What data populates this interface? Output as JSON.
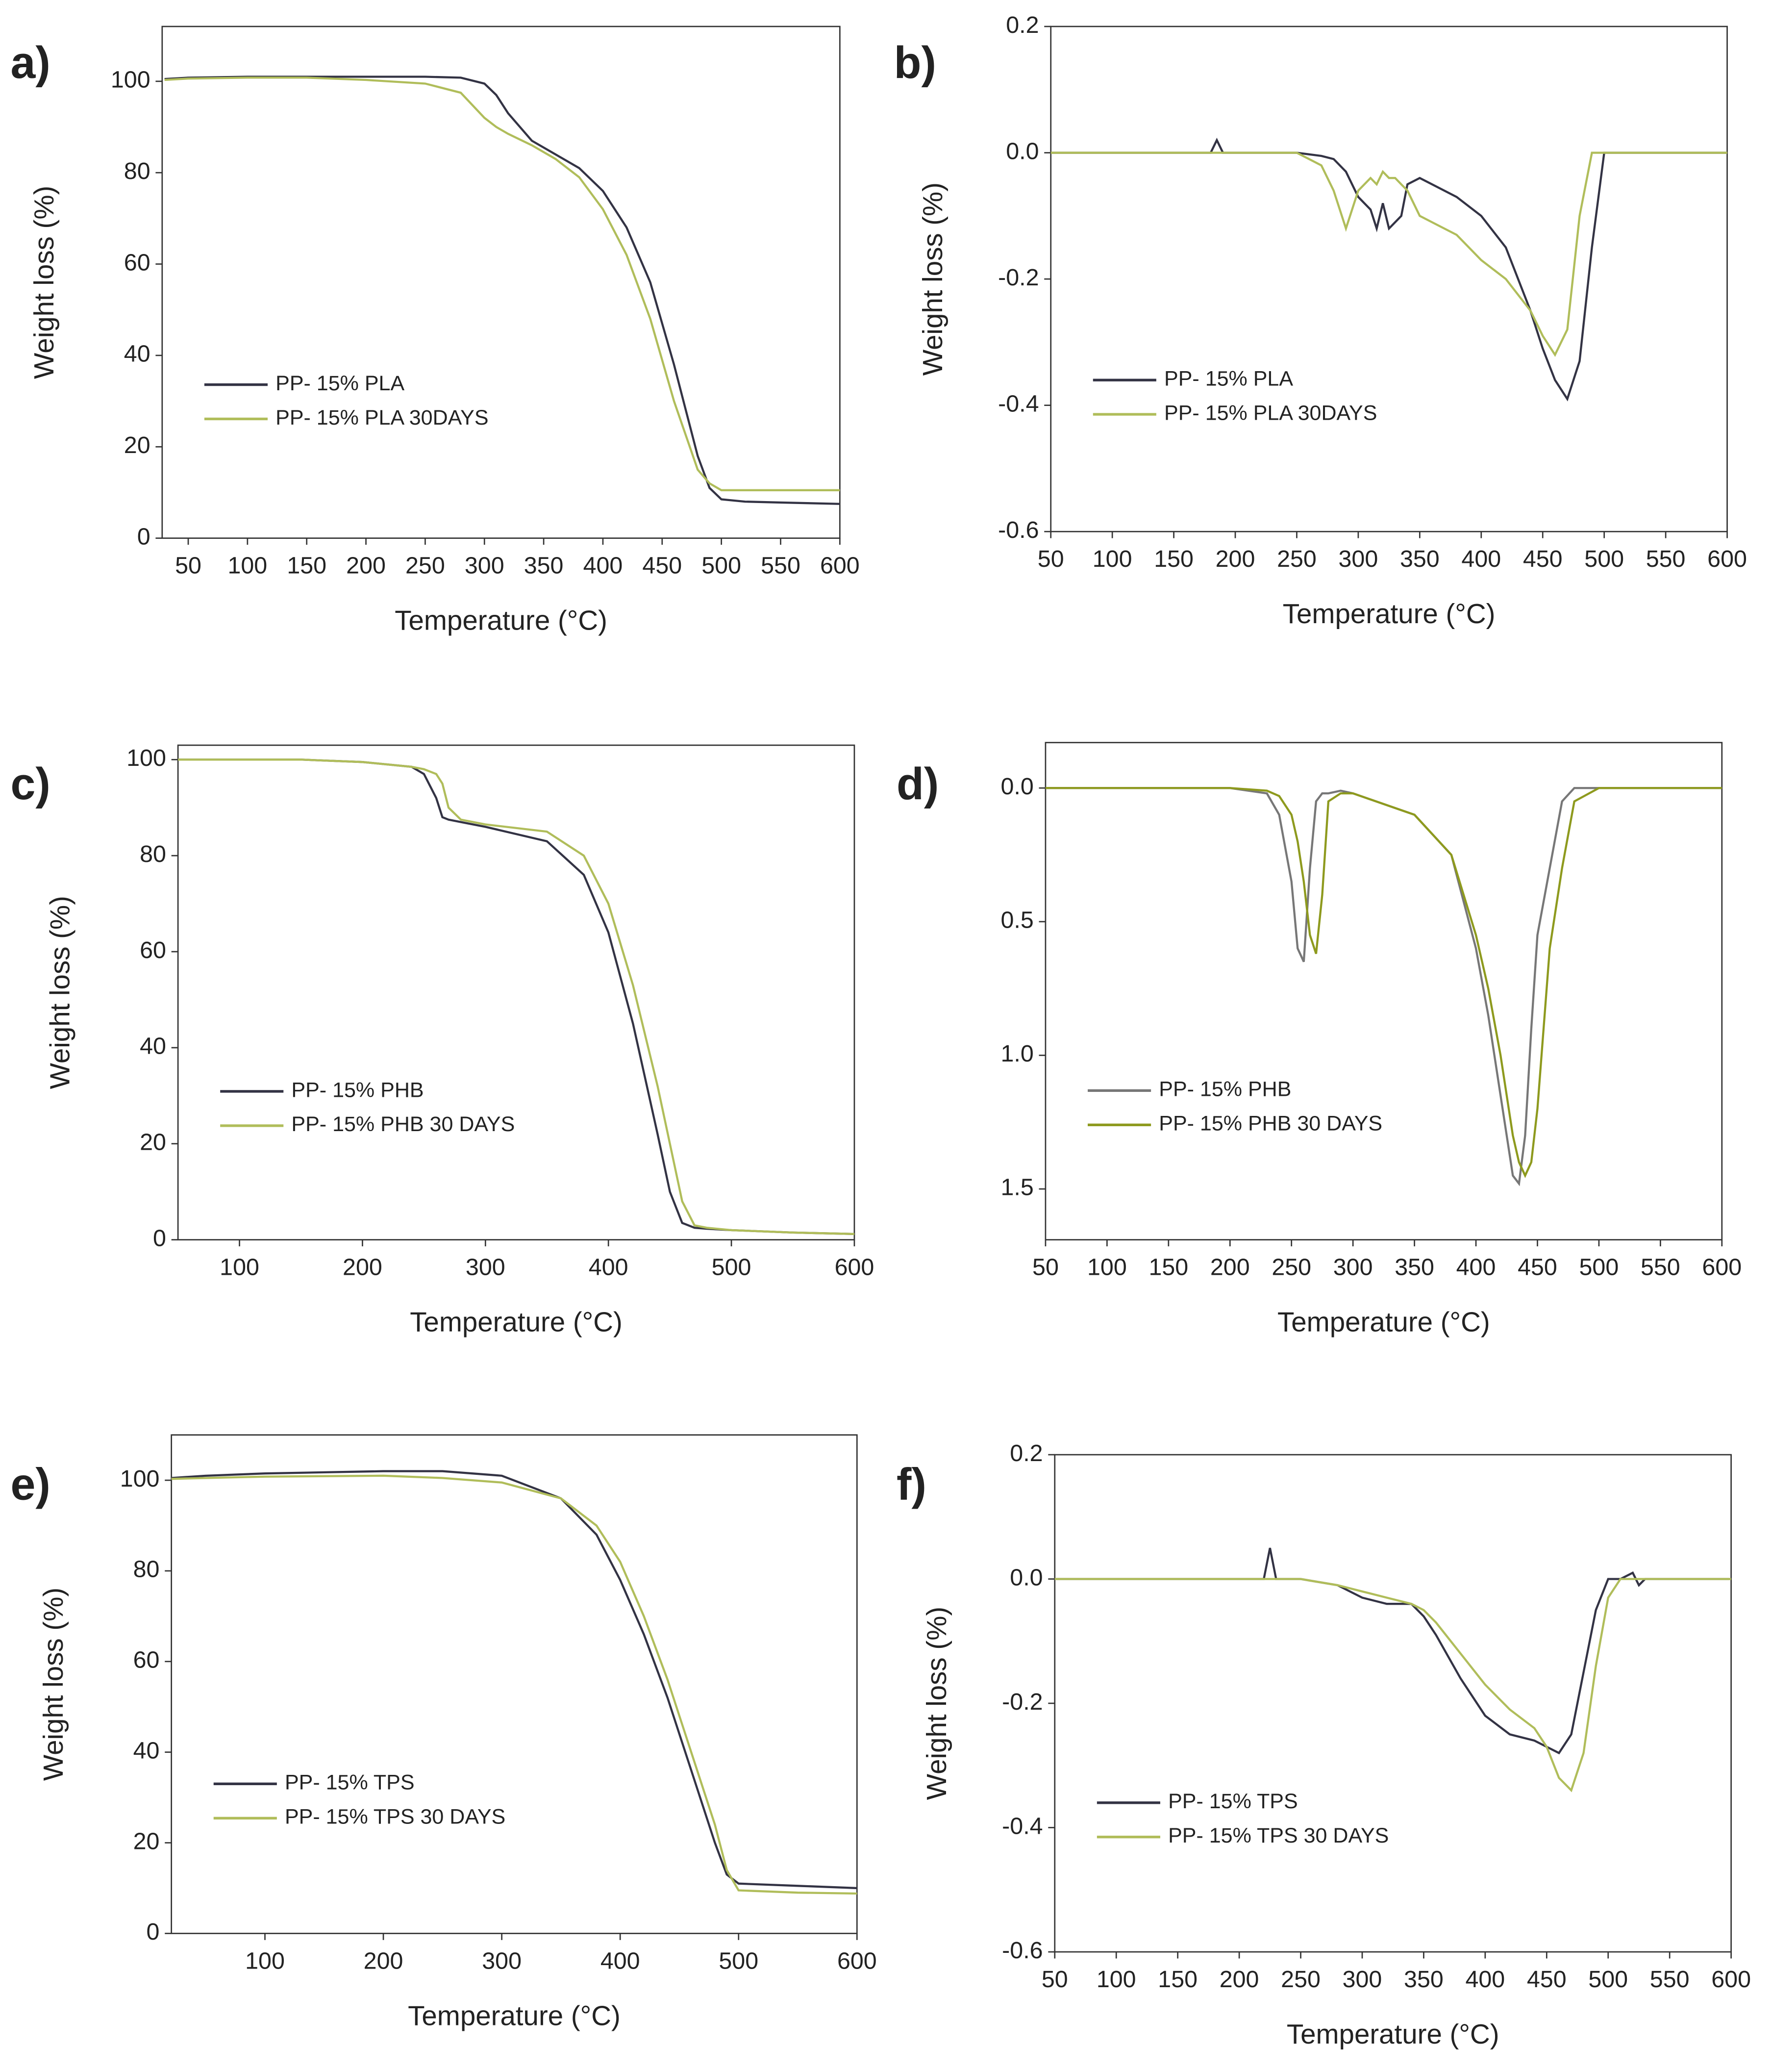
{
  "chart_data": [
    {
      "type": "line",
      "label": "a)",
      "xlabel": "Temperature (°C)",
      "ylabel": "Weight loss (%)",
      "x": [
        30,
        50,
        100,
        150,
        200,
        250,
        280,
        300,
        310,
        320,
        340,
        360,
        380,
        400,
        420,
        440,
        460,
        480,
        490,
        500,
        520,
        550,
        600
      ],
      "series": [
        {
          "name": "PP- 15% PLA",
          "color": "#333344",
          "values": [
            100.5,
            100.8,
            101,
            101,
            101,
            101,
            100.8,
            99.5,
            97,
            93,
            87,
            84,
            81,
            76,
            68,
            56,
            38,
            18,
            11,
            8.5,
            8,
            7.8,
            7.5
          ]
        },
        {
          "name": "PP- 15% PLA 30DAYS",
          "color": "#b0bd5a",
          "values": [
            100.3,
            100.6,
            100.8,
            100.8,
            100.3,
            99.5,
            97.5,
            92,
            90,
            88.5,
            86,
            83,
            79,
            72,
            62,
            48,
            30,
            15,
            12,
            10.5,
            10.5,
            10.5,
            10.5
          ]
        }
      ],
      "xlim": [
        28,
        600
      ],
      "ylim": [
        0,
        112
      ],
      "xticks": [
        50,
        100,
        150,
        200,
        250,
        300,
        350,
        400,
        450,
        500,
        550,
        600
      ],
      "yticks": [
        0,
        20,
        40,
        60,
        80,
        100
      ],
      "legend": "lower left"
    },
    {
      "type": "line",
      "label": "b)",
      "xlabel": "Temperature (°C)",
      "ylabel": "Weight loss (%)",
      "x": [
        50,
        100,
        150,
        180,
        185,
        190,
        200,
        250,
        270,
        280,
        290,
        300,
        310,
        315,
        320,
        325,
        330,
        335,
        340,
        350,
        380,
        400,
        420,
        440,
        450,
        460,
        470,
        480,
        490,
        500,
        550,
        600
      ],
      "series": [
        {
          "name": "PP- 15% PLA",
          "color": "#333344",
          "values": [
            0,
            0,
            0,
            0,
            0.02,
            0,
            0,
            0,
            -0.005,
            -0.01,
            -0.03,
            -0.07,
            -0.09,
            -0.12,
            -0.08,
            -0.12,
            -0.11,
            -0.1,
            -0.05,
            -0.04,
            -0.07,
            -0.1,
            -0.15,
            -0.25,
            -0.31,
            -0.36,
            -0.39,
            -0.33,
            -0.15,
            0,
            0,
            0
          ]
        },
        {
          "name": "PP- 15% PLA 30DAYS",
          "color": "#b0bd5a",
          "values": [
            0,
            0,
            0,
            0,
            0,
            0,
            0,
            0,
            -0.02,
            -0.06,
            -0.12,
            -0.06,
            -0.04,
            -0.05,
            -0.03,
            -0.04,
            -0.04,
            -0.05,
            -0.06,
            -0.1,
            -0.13,
            -0.17,
            -0.2,
            -0.25,
            -0.29,
            -0.32,
            -0.28,
            -0.1,
            0,
            0,
            0,
            0
          ]
        }
      ],
      "xlim": [
        50,
        600
      ],
      "ylim": [
        -0.6,
        0.2
      ],
      "xticks": [
        50,
        100,
        150,
        200,
        250,
        300,
        350,
        400,
        450,
        500,
        550,
        600
      ],
      "yticks": [
        -0.6,
        -0.4,
        -0.2,
        {
          "value": 0,
          "label": "0.0"
        },
        0.2
      ],
      "legend": "lower left"
    },
    {
      "type": "line",
      "label": "c)",
      "xlabel": "Temperature (°C)",
      "ylabel": "Weight loss (%)",
      "x": [
        50,
        100,
        150,
        200,
        240,
        250,
        260,
        265,
        270,
        280,
        300,
        350,
        380,
        400,
        420,
        440,
        450,
        460,
        470,
        480,
        500,
        550,
        600
      ],
      "series": [
        {
          "name": "PP- 15% PHB",
          "color": "#333344",
          "values": [
            100,
            100,
            100,
            99.5,
            98.5,
            97,
            92,
            88,
            87.5,
            87,
            86,
            83,
            76,
            64,
            45,
            22,
            10,
            3.5,
            2.5,
            2.3,
            2,
            1.5,
            1.2
          ]
        },
        {
          "name": "PP- 15% PHB 30 DAYS",
          "color": "#b0bd5a",
          "values": [
            100,
            100,
            100,
            99.5,
            98.5,
            98,
            97,
            95,
            90,
            87.5,
            86.5,
            85,
            80,
            70,
            53,
            32,
            20,
            8,
            3,
            2.5,
            2,
            1.5,
            1.2
          ]
        }
      ],
      "xlim": [
        50,
        600
      ],
      "ylim": [
        0,
        103
      ],
      "xticks": [
        100,
        200,
        300,
        400,
        500,
        600
      ],
      "yticks": [
        0,
        20,
        40,
        60,
        80,
        100
      ],
      "legend": "lower left"
    },
    {
      "type": "line",
      "label": "d)",
      "xlabel": "Temperature (°C)",
      "x": [
        50,
        100,
        150,
        200,
        230,
        240,
        250,
        255,
        260,
        265,
        270,
        275,
        280,
        290,
        300,
        350,
        380,
        400,
        410,
        420,
        430,
        435,
        440,
        445,
        450,
        460,
        470,
        480,
        500,
        550,
        600
      ],
      "series": [
        {
          "name": "PP- 15% PHB",
          "color": "#777777",
          "values": [
            0,
            0,
            0,
            0,
            0.02,
            0.1,
            0.35,
            0.6,
            0.65,
            0.3,
            0.05,
            0.02,
            0.02,
            0.01,
            0.02,
            0.1,
            0.25,
            0.6,
            0.85,
            1.15,
            1.45,
            1.48,
            1.3,
            0.9,
            0.55,
            0.3,
            0.05,
            0,
            0,
            0,
            0
          ]
        },
        {
          "name": "PP- 15% PHB 30 DAYS",
          "color": "#8e9a1e",
          "values": [
            0,
            0,
            0,
            0,
            0.01,
            0.03,
            0.1,
            0.2,
            0.35,
            0.55,
            0.62,
            0.4,
            0.05,
            0.02,
            0.02,
            0.1,
            0.25,
            0.55,
            0.75,
            1.0,
            1.3,
            1.4,
            1.45,
            1.4,
            1.2,
            0.6,
            0.3,
            0.05,
            0,
            0,
            0
          ]
        }
      ],
      "xlim": [
        50,
        600
      ],
      "ylim": [
        1.69,
        -0.17
      ],
      "xticks": [
        50,
        100,
        150,
        200,
        250,
        300,
        350,
        400,
        450,
        500,
        550,
        600
      ],
      "yticks": [
        {
          "value": 0,
          "label": "0.0"
        },
        0.5,
        {
          "value": 1,
          "label": "1.0"
        },
        1.5
      ],
      "legend": "lower left"
    },
    {
      "type": "line",
      "label": "e)",
      "xlabel": "Temperature (°C)",
      "ylabel": "Weight loss (%)",
      "x": [
        21,
        50,
        100,
        200,
        250,
        300,
        350,
        380,
        400,
        420,
        440,
        460,
        480,
        490,
        500,
        550,
        600
      ],
      "series": [
        {
          "name": "PP- 15% TPS",
          "color": "#333344",
          "values": [
            100.5,
            101,
            101.5,
            102,
            102,
            101,
            96,
            88,
            78,
            66,
            52,
            36,
            20,
            13,
            11,
            10.5,
            10
          ]
        },
        {
          "name": "PP- 15% TPS 30 DAYS",
          "color": "#b0bd5a",
          "values": [
            100.3,
            100.5,
            100.8,
            101,
            100.5,
            99.5,
            96,
            90,
            82,
            70,
            56,
            40,
            24,
            14,
            9.5,
            9,
            8.8
          ]
        }
      ],
      "xlim": [
        21,
        600
      ],
      "ylim": [
        0,
        110
      ],
      "xticks": [
        100,
        200,
        300,
        400,
        500,
        600
      ],
      "yticks": [
        0,
        20,
        40,
        60,
        80,
        100
      ],
      "legend": "lower left"
    },
    {
      "type": "line",
      "label": "f)",
      "xlabel": "Temperature (°C)",
      "ylabel": "Weight loss (%)",
      "x": [
        50,
        100,
        150,
        200,
        220,
        225,
        230,
        250,
        280,
        300,
        320,
        340,
        350,
        360,
        380,
        400,
        420,
        440,
        450,
        460,
        470,
        480,
        490,
        500,
        510,
        520,
        525,
        530,
        550,
        600
      ],
      "series": [
        {
          "name": "PP- 15% TPS",
          "color": "#333344",
          "values": [
            0,
            0,
            0,
            0,
            0,
            0.05,
            0,
            0,
            -0.01,
            -0.03,
            -0.04,
            -0.04,
            -0.06,
            -0.09,
            -0.16,
            -0.22,
            -0.25,
            -0.26,
            -0.27,
            -0.28,
            -0.25,
            -0.15,
            -0.05,
            0,
            0,
            0.01,
            -0.01,
            0,
            0,
            0
          ]
        },
        {
          "name": "PP- 15% TPS 30 DAYS",
          "color": "#b0bd5a",
          "values": [
            0,
            0,
            0,
            0,
            0,
            0,
            0,
            0,
            -0.01,
            -0.02,
            -0.03,
            -0.04,
            -0.05,
            -0.07,
            -0.12,
            -0.17,
            -0.21,
            -0.24,
            -0.27,
            -0.32,
            -0.34,
            -0.28,
            -0.14,
            -0.03,
            0,
            0,
            0,
            0,
            0,
            0
          ]
        }
      ],
      "xlim": [
        50,
        600
      ],
      "ylim": [
        -0.6,
        0.2
      ],
      "xticks": [
        50,
        100,
        150,
        200,
        250,
        300,
        350,
        400,
        450,
        500,
        550,
        600
      ],
      "yticks": [
        -0.6,
        -0.4,
        -0.2,
        {
          "value": 0,
          "label": "0.0"
        },
        0.2
      ],
      "legend": "lower left"
    }
  ]
}
